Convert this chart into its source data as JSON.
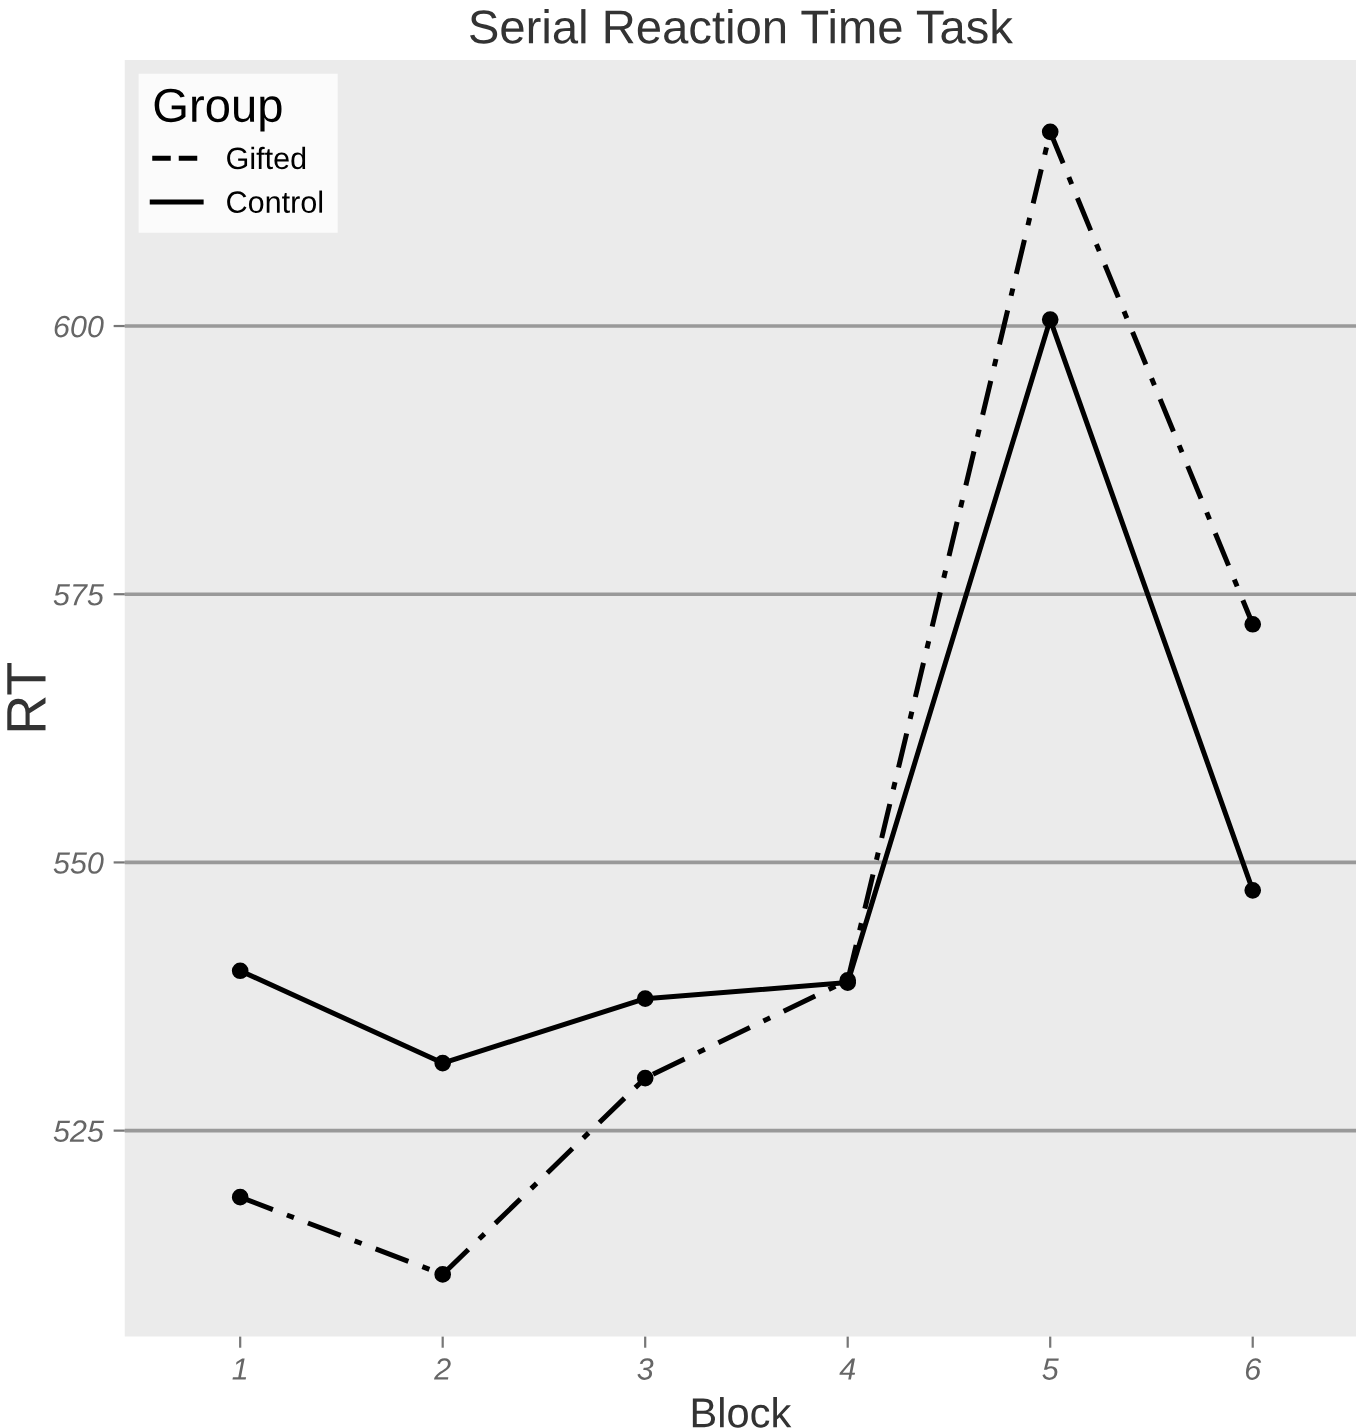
{
  "chart_data": {
    "type": "line",
    "title": "Serial Reaction Time Task",
    "xlabel": "Block",
    "ylabel": "RT",
    "legend_title": "Group",
    "x": [
      1,
      2,
      3,
      4,
      5,
      6
    ],
    "series": [
      {
        "name": "Gifted",
        "color": "#000000",
        "line_style": "dashed",
        "values": [
          518.8,
          511.6,
          529.9,
          539.0,
          618.1,
          572.2
        ]
      },
      {
        "name": "Control",
        "color": "#000000",
        "line_style": "solid",
        "values": [
          539.9,
          531.3,
          537.3,
          538.8,
          600.6,
          547.4
        ]
      }
    ],
    "xlim": [
      0.43,
      6.51
    ],
    "xticks": [
      1,
      2,
      3,
      4,
      5,
      6
    ],
    "ylim": [
      505.8,
      624.8
    ],
    "yticks": [
      525,
      550,
      575,
      600
    ],
    "grid": "y",
    "legend": "top left",
    "marker": "circle"
  }
}
